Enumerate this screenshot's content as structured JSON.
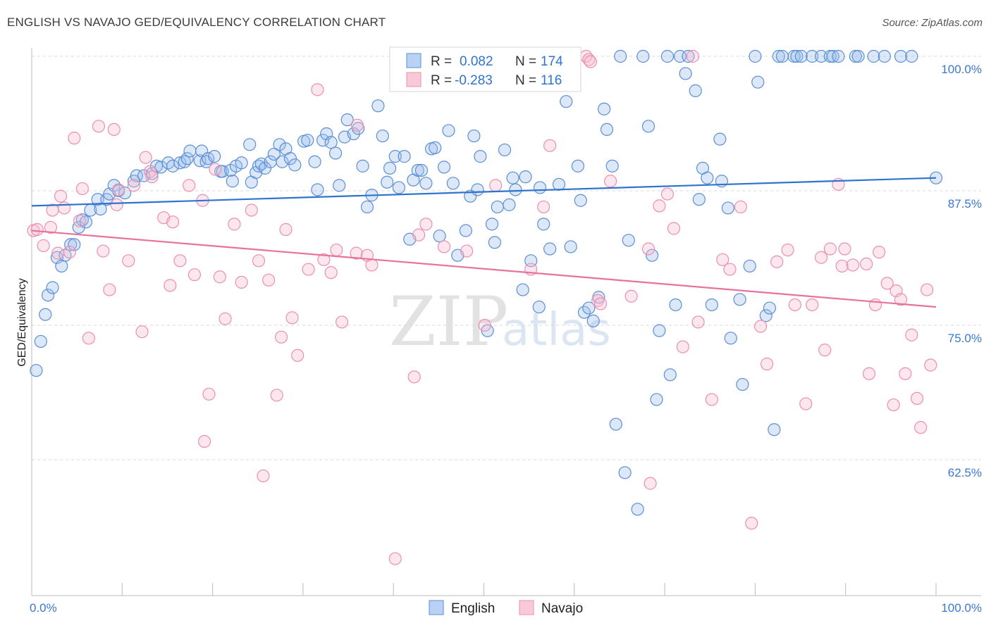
{
  "title": "ENGLISH VS NAVAJO GED/EQUIVALENCY CORRELATION CHART",
  "source": "Source: ZipAtlas.com",
  "watermark": {
    "zip": "ZIP",
    "atlas": "atlas"
  },
  "colors": {
    "english": "#5b8fd6",
    "navajo": "#ec8fae",
    "english_line": "#2f73d0",
    "navajo_line": "#e8729b",
    "axis_text": "#3b78d4"
  },
  "stats": {
    "r_label": "R =",
    "n_label": "N =",
    "english": {
      "r": "0.082",
      "n": "174"
    },
    "navajo": {
      "r": "-0.283",
      "n": "116"
    }
  },
  "chart_data": {
    "type": "scatter",
    "title": "ENGLISH VS NAVAJO GED/EQUIVALENCY CORRELATION CHART",
    "xlabel": "",
    "ylabel": "GED/Equivalency",
    "xlim": [
      0,
      100
    ],
    "ylim": [
      51.5,
      101.5
    ],
    "x_tick_labels": [
      "0.0%",
      "100.0%"
    ],
    "y_ticks": [
      62.5,
      75.0,
      87.5,
      100.0
    ],
    "y_tick_labels": [
      "62.5%",
      "75.0%",
      "87.5%",
      "100.0%"
    ],
    "grid": "horizontal dashed",
    "legend": "bottom-center",
    "series": [
      {
        "name": "English",
        "trend": [
          [
            0,
            86.1
          ],
          [
            100,
            88.7
          ]
        ],
        "points": [
          [
            0.5,
            70.8
          ],
          [
            1.0,
            73.5
          ],
          [
            1.5,
            76.0
          ],
          [
            1.8,
            77.8
          ],
          [
            2.3,
            78.5
          ],
          [
            2.8,
            81.3
          ],
          [
            3.3,
            80.5
          ],
          [
            3.7,
            81.5
          ],
          [
            4.3,
            82.5
          ],
          [
            4.7,
            82.5
          ],
          [
            5.2,
            84.1
          ],
          [
            5.6,
            84.8
          ],
          [
            6.0,
            84.6
          ],
          [
            6.5,
            85.7
          ],
          [
            7.3,
            86.7
          ],
          [
            7.6,
            85.8
          ],
          [
            8.3,
            86.7
          ],
          [
            8.6,
            87.2
          ],
          [
            9.1,
            88.0
          ],
          [
            9.6,
            87.5
          ],
          [
            10.3,
            87.3
          ],
          [
            11.3,
            88.4
          ],
          [
            11.6,
            88.9
          ],
          [
            12.4,
            88.9
          ],
          [
            13.3,
            89.1
          ],
          [
            13.8,
            89.8
          ],
          [
            14.3,
            89.7
          ],
          [
            15.1,
            90.1
          ],
          [
            15.6,
            89.8
          ],
          [
            16.4,
            90.1
          ],
          [
            16.9,
            90.2
          ],
          [
            17.2,
            90.5
          ],
          [
            17.5,
            91.2
          ],
          [
            18.6,
            90.3
          ],
          [
            18.8,
            91.2
          ],
          [
            19.3,
            90.2
          ],
          [
            19.5,
            90.5
          ],
          [
            20.2,
            90.7
          ],
          [
            20.9,
            89.3
          ],
          [
            21.1,
            89.3
          ],
          [
            22.0,
            89.4
          ],
          [
            22.2,
            88.4
          ],
          [
            22.6,
            89.8
          ],
          [
            23.2,
            90.1
          ],
          [
            24.1,
            91.8
          ],
          [
            24.3,
            88.3
          ],
          [
            24.8,
            89.2
          ],
          [
            25.1,
            89.8
          ],
          [
            25.4,
            90.0
          ],
          [
            25.8,
            89.6
          ],
          [
            26.4,
            90.2
          ],
          [
            26.8,
            90.9
          ],
          [
            27.4,
            91.8
          ],
          [
            27.7,
            90.2
          ],
          [
            28.1,
            91.4
          ],
          [
            28.6,
            90.5
          ],
          [
            29.1,
            89.9
          ],
          [
            30.1,
            92.1
          ],
          [
            30.5,
            92.2
          ],
          [
            31.3,
            90.2
          ],
          [
            31.6,
            87.6
          ],
          [
            32.2,
            92.2
          ],
          [
            32.6,
            92.8
          ],
          [
            33.1,
            92.0
          ],
          [
            33.6,
            91.0
          ],
          [
            34.0,
            88.0
          ],
          [
            34.6,
            92.5
          ],
          [
            34.9,
            94.1
          ],
          [
            35.6,
            92.8
          ],
          [
            36.1,
            93.3
          ],
          [
            36.6,
            89.8
          ],
          [
            37.1,
            86.0
          ],
          [
            37.6,
            87.1
          ],
          [
            38.3,
            95.4
          ],
          [
            38.8,
            92.6
          ],
          [
            39.3,
            88.3
          ],
          [
            39.6,
            89.6
          ],
          [
            40.2,
            90.7
          ],
          [
            40.6,
            87.8
          ],
          [
            41.2,
            90.7
          ],
          [
            41.8,
            83.0
          ],
          [
            42.2,
            88.5
          ],
          [
            42.7,
            89.4
          ],
          [
            43.1,
            89.4
          ],
          [
            43.6,
            88.2
          ],
          [
            44.2,
            91.4
          ],
          [
            44.6,
            91.5
          ],
          [
            45.1,
            83.3
          ],
          [
            45.6,
            89.7
          ],
          [
            46.1,
            93.1
          ],
          [
            46.6,
            88.2
          ],
          [
            47.1,
            81.5
          ],
          [
            48.0,
            83.8
          ],
          [
            48.5,
            87.0
          ],
          [
            48.9,
            92.6
          ],
          [
            49.3,
            87.6
          ],
          [
            49.6,
            90.7
          ],
          [
            50.4,
            74.5
          ],
          [
            50.9,
            84.4
          ],
          [
            51.2,
            82.7
          ],
          [
            51.5,
            86.0
          ],
          [
            52.3,
            91.3
          ],
          [
            52.8,
            86.2
          ],
          [
            53.2,
            88.7
          ],
          [
            53.5,
            87.6
          ],
          [
            54.3,
            78.3
          ],
          [
            54.6,
            88.8
          ],
          [
            55.2,
            81.0
          ],
          [
            56.1,
            76.7
          ],
          [
            56.2,
            87.8
          ],
          [
            56.6,
            84.4
          ],
          [
            57.3,
            82.1
          ],
          [
            58.3,
            88.1
          ],
          [
            59.1,
            95.8
          ],
          [
            59.6,
            82.3
          ],
          [
            60.4,
            89.8
          ],
          [
            60.7,
            86.6
          ],
          [
            61.1,
            76.2
          ],
          [
            61.6,
            76.6
          ],
          [
            62.1,
            75.4
          ],
          [
            62.7,
            77.6
          ],
          [
            63.3,
            95.1
          ],
          [
            63.6,
            93.2
          ],
          [
            64.2,
            89.8
          ],
          [
            64.6,
            65.8
          ],
          [
            65.1,
            100.0
          ],
          [
            65.6,
            61.3
          ],
          [
            66.0,
            82.9
          ],
          [
            67.0,
            57.9
          ],
          [
            67.6,
            100.0
          ],
          [
            68.2,
            93.5
          ],
          [
            68.6,
            81.5
          ],
          [
            69.1,
            68.1
          ],
          [
            69.4,
            74.5
          ],
          [
            70.3,
            100.0
          ],
          [
            70.6,
            70.4
          ],
          [
            71.2,
            76.9
          ],
          [
            71.7,
            100.0
          ],
          [
            72.3,
            98.4
          ],
          [
            72.6,
            100.0
          ],
          [
            73.4,
            96.8
          ],
          [
            73.8,
            86.7
          ],
          [
            74.2,
            89.6
          ],
          [
            74.7,
            88.7
          ],
          [
            75.2,
            76.9
          ],
          [
            76.1,
            92.3
          ],
          [
            76.3,
            88.4
          ],
          [
            77.0,
            85.9
          ],
          [
            77.3,
            73.8
          ],
          [
            78.3,
            77.4
          ],
          [
            78.6,
            69.5
          ],
          [
            79.4,
            80.5
          ],
          [
            80.0,
            100.0
          ],
          [
            80.3,
            97.6
          ],
          [
            81.2,
            75.9
          ],
          [
            81.6,
            76.6
          ],
          [
            82.1,
            65.3
          ],
          [
            82.6,
            100.0
          ],
          [
            83.0,
            100.0
          ],
          [
            84.3,
            100.0
          ],
          [
            84.6,
            100.0
          ],
          [
            85.1,
            100.0
          ],
          [
            86.3,
            100.0
          ],
          [
            87.3,
            100.0
          ],
          [
            88.3,
            100.0
          ],
          [
            88.6,
            100.0
          ],
          [
            89.2,
            100.0
          ],
          [
            91.1,
            100.0
          ],
          [
            91.4,
            100.0
          ],
          [
            93.1,
            100.0
          ],
          [
            94.3,
            100.0
          ],
          [
            96.1,
            100.0
          ],
          [
            97.3,
            100.0
          ],
          [
            100.0,
            88.7
          ]
        ]
      },
      {
        "name": "Navajo",
        "trend": [
          [
            0,
            83.8
          ],
          [
            100,
            76.7
          ]
        ],
        "points": [
          [
            0.2,
            83.8
          ],
          [
            0.6,
            83.9
          ],
          [
            1.3,
            82.4
          ],
          [
            2.1,
            84.1
          ],
          [
            2.3,
            85.7
          ],
          [
            2.9,
            81.7
          ],
          [
            3.2,
            87.0
          ],
          [
            3.6,
            85.9
          ],
          [
            4.2,
            81.8
          ],
          [
            4.7,
            92.4
          ],
          [
            5.3,
            84.7
          ],
          [
            5.6,
            87.7
          ],
          [
            6.3,
            73.8
          ],
          [
            7.4,
            93.5
          ],
          [
            7.9,
            81.9
          ],
          [
            8.6,
            78.3
          ],
          [
            9.1,
            93.2
          ],
          [
            9.4,
            86.2
          ],
          [
            9.6,
            87.6
          ],
          [
            10.7,
            81.0
          ],
          [
            11.3,
            88.0
          ],
          [
            12.2,
            74.4
          ],
          [
            12.6,
            90.6
          ],
          [
            13.1,
            89.3
          ],
          [
            13.3,
            88.8
          ],
          [
            14.6,
            85.0
          ],
          [
            15.3,
            78.7
          ],
          [
            15.6,
            84.6
          ],
          [
            16.4,
            81.0
          ],
          [
            17.4,
            88.0
          ],
          [
            18.0,
            79.7
          ],
          [
            18.9,
            86.6
          ],
          [
            19.1,
            64.2
          ],
          [
            19.6,
            68.6
          ],
          [
            20.3,
            89.5
          ],
          [
            20.8,
            79.5
          ],
          [
            21.4,
            75.6
          ],
          [
            22.4,
            84.4
          ],
          [
            23.2,
            79.0
          ],
          [
            24.3,
            85.7
          ],
          [
            25.1,
            81.0
          ],
          [
            25.6,
            61.0
          ],
          [
            26.2,
            79.2
          ],
          [
            27.1,
            68.5
          ],
          [
            27.6,
            73.9
          ],
          [
            28.1,
            83.9
          ],
          [
            28.8,
            75.7
          ],
          [
            29.4,
            72.2
          ],
          [
            30.6,
            80.2
          ],
          [
            31.6,
            96.9
          ],
          [
            32.3,
            81.1
          ],
          [
            33.1,
            79.9
          ],
          [
            33.7,
            82.0
          ],
          [
            34.3,
            75.3
          ],
          [
            36.0,
            93.6
          ],
          [
            35.9,
            81.7
          ],
          [
            37.1,
            81.5
          ],
          [
            37.6,
            80.6
          ],
          [
            40.2,
            53.3
          ],
          [
            42.3,
            70.2
          ],
          [
            42.8,
            83.4
          ],
          [
            43.6,
            84.4
          ],
          [
            45.6,
            82.3
          ],
          [
            48.1,
            81.9
          ],
          [
            50.1,
            75.0
          ],
          [
            51.3,
            88.0
          ],
          [
            55.2,
            80.2
          ],
          [
            56.6,
            86.0
          ],
          [
            57.3,
            91.7
          ],
          [
            61.3,
            100.0
          ],
          [
            61.6,
            99.7
          ],
          [
            61.8,
            99.5
          ],
          [
            62.6,
            77.3
          ],
          [
            62.9,
            77.0
          ],
          [
            64.0,
            88.4
          ],
          [
            66.3,
            77.7
          ],
          [
            68.2,
            82.1
          ],
          [
            68.4,
            60.3
          ],
          [
            69.4,
            86.1
          ],
          [
            70.3,
            87.2
          ],
          [
            71.0,
            84.0
          ],
          [
            72.0,
            73.0
          ],
          [
            73.1,
            100.0
          ],
          [
            73.7,
            75.3
          ],
          [
            75.2,
            68.1
          ],
          [
            76.4,
            81.1
          ],
          [
            77.2,
            80.2
          ],
          [
            78.4,
            86.0
          ],
          [
            79.6,
            56.6
          ],
          [
            80.6,
            74.9
          ],
          [
            81.3,
            71.4
          ],
          [
            82.4,
            80.9
          ],
          [
            83.6,
            82.0
          ],
          [
            84.4,
            76.9
          ],
          [
            85.6,
            67.7
          ],
          [
            86.3,
            76.9
          ],
          [
            87.3,
            81.3
          ],
          [
            87.7,
            72.7
          ],
          [
            88.3,
            82.1
          ],
          [
            89.2,
            88.1
          ],
          [
            89.6,
            80.5
          ],
          [
            89.9,
            82.1
          ],
          [
            90.8,
            80.6
          ],
          [
            92.3,
            80.7
          ],
          [
            92.6,
            70.5
          ],
          [
            93.3,
            76.9
          ],
          [
            93.7,
            81.8
          ],
          [
            94.6,
            78.9
          ],
          [
            95.3,
            67.6
          ],
          [
            95.6,
            78.2
          ],
          [
            96.1,
            77.4
          ],
          [
            96.6,
            70.5
          ],
          [
            97.3,
            74.1
          ],
          [
            97.9,
            68.2
          ],
          [
            98.3,
            65.5
          ],
          [
            99.0,
            78.3
          ],
          [
            99.4,
            71.3
          ]
        ]
      }
    ]
  }
}
